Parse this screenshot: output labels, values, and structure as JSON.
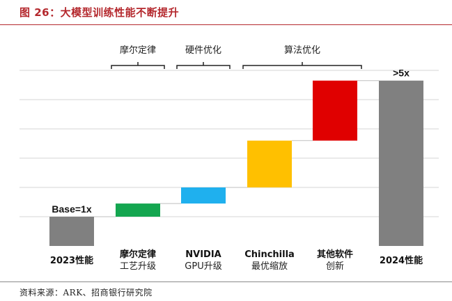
{
  "figure_title": "图 26：大模型训练性能不断提升",
  "source": "资料来源：ARK、招商银行研究院",
  "colors": {
    "title_red": "#b4282d",
    "gray_bar": "#808080",
    "green_bar": "#14a650",
    "blue_bar": "#1fb0ee",
    "yellow_bar": "#ffc000",
    "red_bar": "#e00000",
    "grid": "#d4d4d4"
  },
  "chart_data": {
    "type": "waterfall",
    "title": "",
    "xlabel": "",
    "ylabel": "",
    "ylim": [
      0,
      6
    ],
    "grid": true,
    "categories": [
      {
        "line1": "2023性能",
        "line2": ""
      },
      {
        "line1": "摩尔定律",
        "line2": "工艺升级"
      },
      {
        "line1": "NVIDIA",
        "line2": "GPU升级"
      },
      {
        "line1": "Chinchilla",
        "line2": "最优缩放"
      },
      {
        "line1": "其他软件",
        "line2": "创新"
      },
      {
        "line1": "2024性能",
        "line2": ""
      }
    ],
    "bars": [
      {
        "start": 0,
        "end": 1.0,
        "color": "#808080",
        "kind": "total"
      },
      {
        "start": 1.0,
        "end": 1.45,
        "color": "#14a650",
        "kind": "delta"
      },
      {
        "start": 1.45,
        "end": 2.0,
        "color": "#1fb0ee",
        "kind": "delta"
      },
      {
        "start": 2.0,
        "end": 3.6,
        "color": "#ffc000",
        "kind": "delta"
      },
      {
        "start": 3.6,
        "end": 5.65,
        "color": "#e00000",
        "kind": "delta"
      },
      {
        "start": 0,
        "end": 5.65,
        "color": "#808080",
        "kind": "total"
      }
    ],
    "data_labels": [
      {
        "text": "Base=1x",
        "bar": 0
      },
      {
        "text": ">5x",
        "bar": 5
      }
    ],
    "groups": [
      {
        "label": "摩尔定律",
        "from": 1,
        "to": 1
      },
      {
        "label": "硬件优化",
        "from": 2,
        "to": 2
      },
      {
        "label": "算法优化",
        "from": 3,
        "to": 4
      }
    ]
  }
}
